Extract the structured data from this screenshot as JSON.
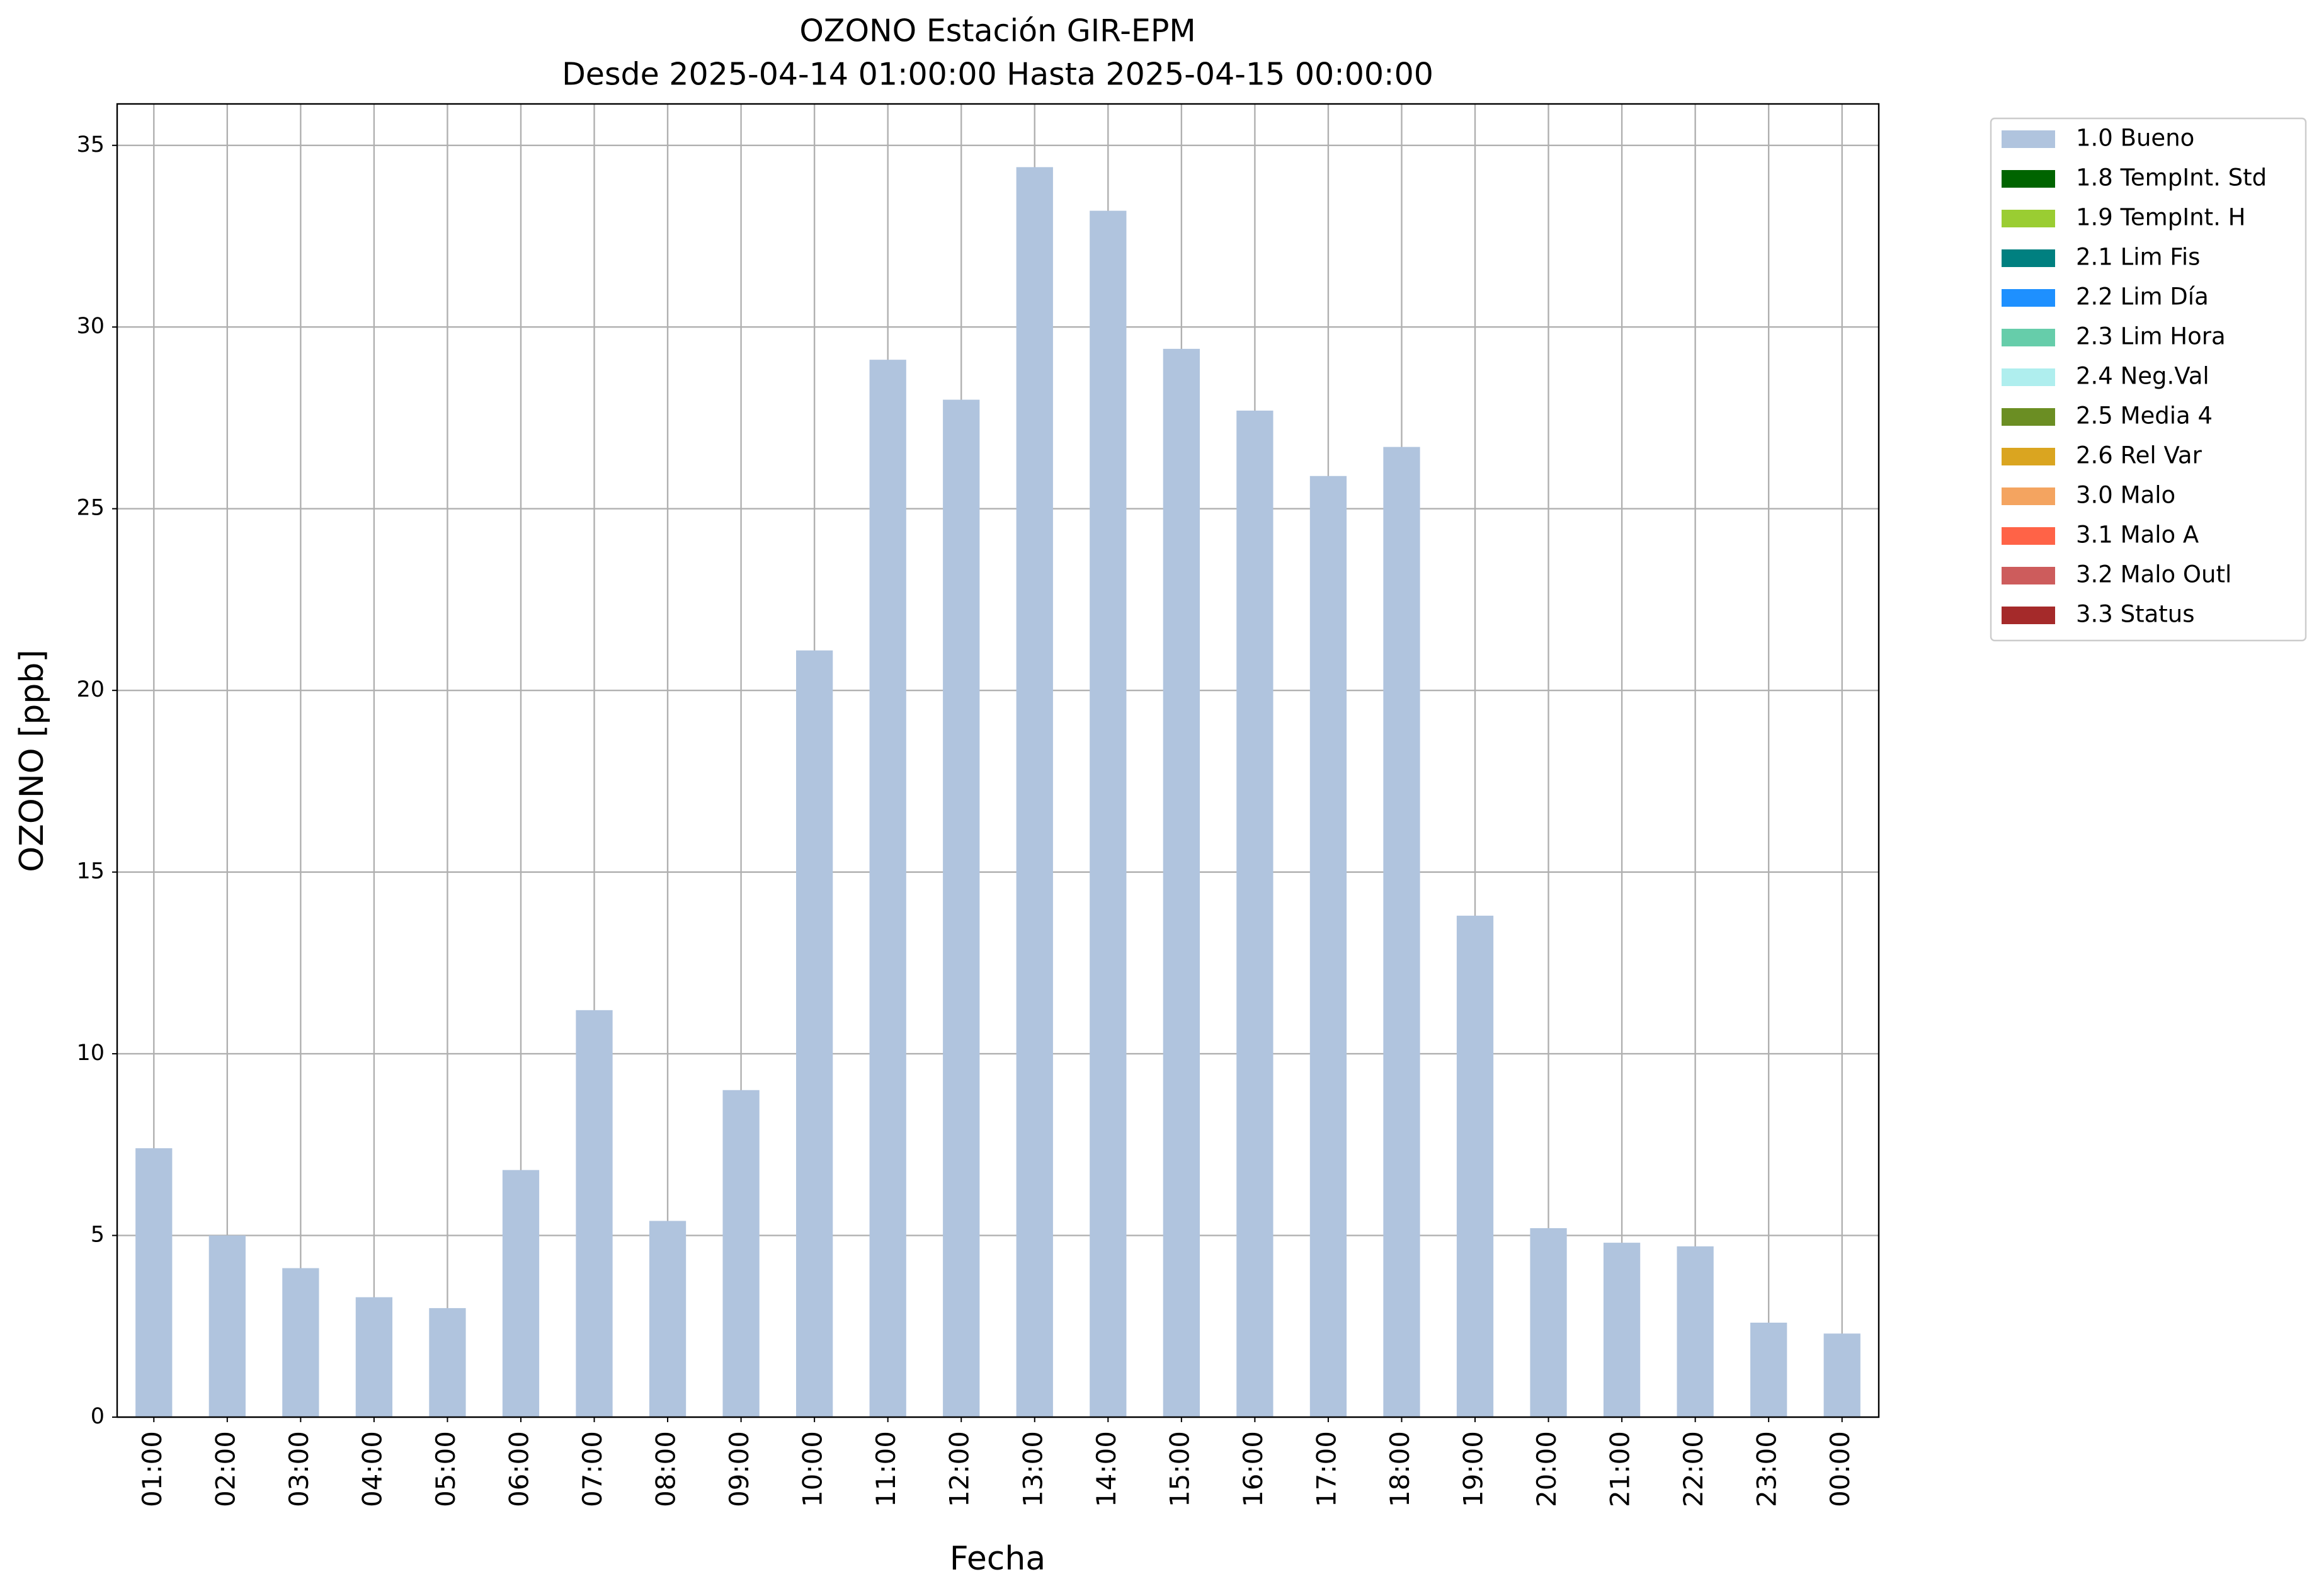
{
  "chart_data": {
    "type": "bar",
    "title": "OZONO Estación GIR-EPM",
    "subtitle": "Desde 2025-04-14 01:00:00 Hasta 2025-04-15 00:00:00",
    "x_label": "Fecha",
    "y_label": "OZONO [ppb]",
    "categories": [
      "01:00",
      "02:00",
      "03:00",
      "04:00",
      "05:00",
      "06:00",
      "07:00",
      "08:00",
      "09:00",
      "10:00",
      "11:00",
      "12:00",
      "13:00",
      "14:00",
      "15:00",
      "16:00",
      "17:00",
      "18:00",
      "19:00",
      "20:00",
      "21:00",
      "22:00",
      "23:00",
      "00:00"
    ],
    "series": [
      {
        "name": "1.0 Bueno",
        "color": "#b0c4de",
        "values": [
          7.4,
          5.0,
          4.1,
          3.3,
          3.0,
          6.8,
          11.2,
          5.4,
          9.0,
          21.1,
          29.1,
          28.0,
          34.4,
          33.2,
          29.4,
          27.7,
          25.9,
          26.7,
          13.8,
          5.2,
          4.8,
          4.7,
          2.6,
          2.3
        ]
      },
      {
        "name": "1.8 TempInt. Std",
        "color": "#006400",
        "values": [
          null,
          null,
          null,
          null,
          null,
          null,
          null,
          null,
          null,
          null,
          null,
          null,
          null,
          null,
          null,
          null,
          null,
          null,
          null,
          null,
          null,
          null,
          null,
          null
        ]
      },
      {
        "name": "1.9 TempInt. H",
        "color": "#9acd32",
        "values": [
          null,
          null,
          null,
          null,
          null,
          null,
          null,
          null,
          null,
          null,
          null,
          null,
          null,
          null,
          null,
          null,
          null,
          null,
          null,
          null,
          null,
          null,
          null,
          null
        ]
      },
      {
        "name": "2.1 Lim Fis",
        "color": "#008080",
        "values": [
          null,
          null,
          null,
          null,
          null,
          null,
          null,
          null,
          null,
          null,
          null,
          null,
          null,
          null,
          null,
          null,
          null,
          null,
          null,
          null,
          null,
          null,
          null,
          null
        ]
      },
      {
        "name": "2.2 Lim Día",
        "color": "#1e90ff",
        "values": [
          null,
          null,
          null,
          null,
          null,
          null,
          null,
          null,
          null,
          null,
          null,
          null,
          null,
          null,
          null,
          null,
          null,
          null,
          null,
          null,
          null,
          null,
          null,
          null
        ]
      },
      {
        "name": "2.3 Lim Hora",
        "color": "#66cdaa",
        "values": [
          null,
          null,
          null,
          null,
          null,
          null,
          null,
          null,
          null,
          null,
          null,
          null,
          null,
          null,
          null,
          null,
          null,
          null,
          null,
          null,
          null,
          null,
          null,
          null
        ]
      },
      {
        "name": "2.4 Neg.Val",
        "color": "#afeeee",
        "values": [
          null,
          null,
          null,
          null,
          null,
          null,
          null,
          null,
          null,
          null,
          null,
          null,
          null,
          null,
          null,
          null,
          null,
          null,
          null,
          null,
          null,
          null,
          null,
          null
        ]
      },
      {
        "name": "2.5 Media 4",
        "color": "#6b8e23",
        "values": [
          null,
          null,
          null,
          null,
          null,
          null,
          null,
          null,
          null,
          null,
          null,
          null,
          null,
          null,
          null,
          null,
          null,
          null,
          null,
          null,
          null,
          null,
          null,
          null
        ]
      },
      {
        "name": "2.6 Rel Var",
        "color": "#daa520",
        "values": [
          null,
          null,
          null,
          null,
          null,
          null,
          null,
          null,
          null,
          null,
          null,
          null,
          null,
          null,
          null,
          null,
          null,
          null,
          null,
          null,
          null,
          null,
          null,
          null
        ]
      },
      {
        "name": "3.0 Malo",
        "color": "#f4a460",
        "values": [
          null,
          null,
          null,
          null,
          null,
          null,
          null,
          null,
          null,
          null,
          null,
          null,
          null,
          null,
          null,
          null,
          null,
          null,
          null,
          null,
          null,
          null,
          null,
          null
        ]
      },
      {
        "name": "3.1 Malo A",
        "color": "#ff6347",
        "values": [
          null,
          null,
          null,
          null,
          null,
          null,
          null,
          null,
          null,
          null,
          null,
          null,
          null,
          null,
          null,
          null,
          null,
          null,
          null,
          null,
          null,
          null,
          null,
          null
        ]
      },
      {
        "name": "3.2 Malo Outl",
        "color": "#cd5c5c",
        "values": [
          null,
          null,
          null,
          null,
          null,
          null,
          null,
          null,
          null,
          null,
          null,
          null,
          null,
          null,
          null,
          null,
          null,
          null,
          null,
          null,
          null,
          null,
          null,
          null
        ]
      },
      {
        "name": "3.3 Status",
        "color": "#a52a2a",
        "values": [
          null,
          null,
          null,
          null,
          null,
          null,
          null,
          null,
          null,
          null,
          null,
          null,
          null,
          null,
          null,
          null,
          null,
          null,
          null,
          null,
          null,
          null,
          null,
          null
        ]
      }
    ],
    "ylim": [
      0,
      36.14
    ],
    "yticks": [
      0,
      5,
      10,
      15,
      20,
      25,
      30,
      35
    ],
    "grid": true,
    "stacked": true,
    "legend": "outside-upper-right"
  }
}
